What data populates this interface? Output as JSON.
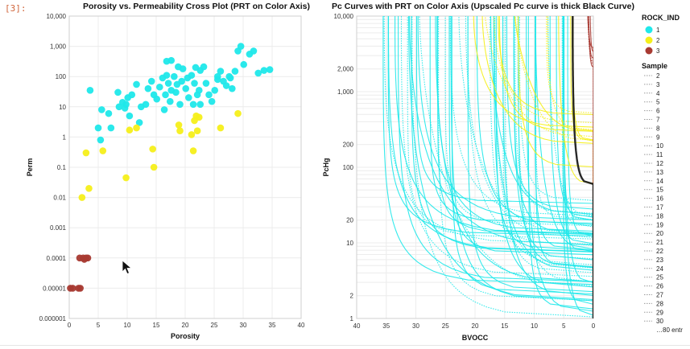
{
  "notebook": {
    "cell_label": "[3]:"
  },
  "colors": {
    "rock1": "#1fe8ea",
    "rock2": "#f5ef1a",
    "rock3": "#a83a32",
    "grid": "#ececec",
    "axis": "#888888",
    "upscaled": "#111111"
  },
  "legend": {
    "color_title": "ROCK_IND",
    "color_items": [
      "1",
      "2",
      "3"
    ],
    "sample_title": "Sample",
    "sample_items": [
      "2",
      "3",
      "4",
      "5",
      "6",
      "7",
      "8",
      "9",
      "10",
      "11",
      "12",
      "13",
      "14",
      "15",
      "16",
      "17",
      "18",
      "19",
      "20",
      "21",
      "22",
      "23",
      "24",
      "25",
      "26",
      "27",
      "28",
      "29",
      "30"
    ],
    "sample_more": "…80 entr"
  },
  "chart_data": [
    {
      "type": "scatter",
      "title": "Porosity vs. Permeability Cross Plot (PRT on Color Axis)",
      "xlabel": "Porosity",
      "ylabel": "Perm",
      "xlim": [
        0,
        40
      ],
      "ylim": [
        1e-06,
        10000
      ],
      "yscale": "log",
      "x_ticks": [
        "0",
        "5",
        "10",
        "15",
        "20",
        "25",
        "30",
        "35",
        "40"
      ],
      "y_ticks": [
        "0.000001",
        "0.00001",
        "0.0001",
        "0.001",
        "0.01",
        "0.1",
        "1",
        "10",
        "100",
        "1,000",
        "10,000"
      ],
      "grid": true,
      "series": [
        {
          "name": "1",
          "points": [
            [
              3.6,
              35
            ],
            [
              5.0,
              2
            ],
            [
              5.6,
              8
            ],
            [
              5.4,
              0.8
            ],
            [
              6.8,
              6
            ],
            [
              7.2,
              2
            ],
            [
              8.6,
              10
            ],
            [
              8.4,
              30
            ],
            [
              9.8,
              12
            ],
            [
              9.6,
              9
            ],
            [
              10.1,
              20
            ],
            [
              10.8,
              25
            ],
            [
              10.4,
              5
            ],
            [
              11.6,
              55
            ],
            [
              12.1,
              3
            ],
            [
              13.6,
              40
            ],
            [
              13.2,
              12
            ],
            [
              14.6,
              25
            ],
            [
              14.2,
              70
            ],
            [
              15.1,
              18
            ],
            [
              15.6,
              45
            ],
            [
              16.1,
              90
            ],
            [
              16.4,
              8
            ],
            [
              16.8,
              110
            ],
            [
              17.1,
              60
            ],
            [
              16.6,
              25
            ],
            [
              17.6,
              35
            ],
            [
              17.4,
              15
            ],
            [
              18.1,
              100
            ],
            [
              18.6,
              55
            ],
            [
              18.4,
              30
            ],
            [
              19.1,
              12
            ],
            [
              19.6,
              180
            ],
            [
              19.4,
              70
            ],
            [
              20.1,
              40
            ],
            [
              20.6,
              20
            ],
            [
              20.4,
              90
            ],
            [
              21.1,
              110
            ],
            [
              21.6,
              60
            ],
            [
              21.4,
              12
            ],
            [
              22.1,
              25
            ],
            [
              22.6,
              160
            ],
            [
              22.4,
              35
            ],
            [
              23.6,
              60
            ],
            [
              24.1,
              25
            ],
            [
              24.6,
              15
            ],
            [
              25.1,
              35
            ],
            [
              25.6,
              100
            ],
            [
              26.1,
              150
            ],
            [
              26.6,
              70
            ],
            [
              27.1,
              50
            ],
            [
              27.6,
              100
            ],
            [
              28.1,
              40
            ],
            [
              28.6,
              150
            ],
            [
              29.1,
              700
            ],
            [
              29.6,
              1000
            ],
            [
              30.1,
              250
            ],
            [
              31.1,
              550
            ],
            [
              32.6,
              130
            ],
            [
              33.6,
              160
            ],
            [
              34.6,
              170
            ],
            [
              16.8,
              320
            ],
            [
              17.6,
              340
            ],
            [
              21.8,
              200
            ],
            [
              23.2,
              210
            ],
            [
              25.6,
              80
            ],
            [
              27.8,
              90
            ],
            [
              31.8,
              700
            ],
            [
              18.8,
              210
            ],
            [
              12.4,
              10
            ],
            [
              9.2,
              14
            ],
            [
              22.6,
              12
            ]
          ]
        },
        {
          "name": "2",
          "points": [
            [
              2.2,
              0.01
            ],
            [
              2.9,
              0.3
            ],
            [
              3.4,
              0.02
            ],
            [
              5.8,
              0.35
            ],
            [
              9.8,
              0.045
            ],
            [
              10.4,
              1.7
            ],
            [
              11.6,
              2
            ],
            [
              14.4,
              0.4
            ],
            [
              14.6,
              0.1
            ],
            [
              18.9,
              2.5
            ],
            [
              19.1,
              1.6
            ],
            [
              21.1,
              1.2
            ],
            [
              21.6,
              3.5
            ],
            [
              21.4,
              0.35
            ],
            [
              21.9,
              5
            ],
            [
              22.1,
              1.6
            ],
            [
              22.4,
              4.5
            ],
            [
              26.1,
              2
            ],
            [
              29.1,
              6
            ]
          ]
        },
        {
          "name": "3",
          "points": [
            [
              0.2,
              1e-05
            ],
            [
              0.6,
              1e-05
            ],
            [
              1.6,
              1e-05
            ],
            [
              1.9,
              1e-05
            ],
            [
              1.8,
              0.0001
            ],
            [
              2.4,
              0.0001
            ],
            [
              2.9,
              0.0001
            ],
            [
              3.2,
              0.0001
            ],
            [
              2.6,
              9e-05
            ]
          ]
        }
      ]
    },
    {
      "type": "line",
      "title": "Pc Curves with PRT on Color Axis (Upscaled Pc curve is thick Black Curve)",
      "xlabel": "BVOCC",
      "ylabel": "PcHg",
      "xlim": [
        40,
        0
      ],
      "ylim": [
        1,
        10000
      ],
      "yscale": "log",
      "x_ticks": [
        "40",
        "35",
        "30",
        "25",
        "20",
        "15",
        "10",
        "5",
        "0"
      ],
      "y_ticks": [
        "1",
        "2",
        "10",
        "20",
        "100",
        "200",
        "1,000",
        "2,000",
        "10,000"
      ],
      "grid": true,
      "series": [
        {
          "name": "1",
          "curve_count": 62
        },
        {
          "name": "2",
          "curve_count": 14
        },
        {
          "name": "3",
          "curve_count": 6
        }
      ]
    }
  ]
}
